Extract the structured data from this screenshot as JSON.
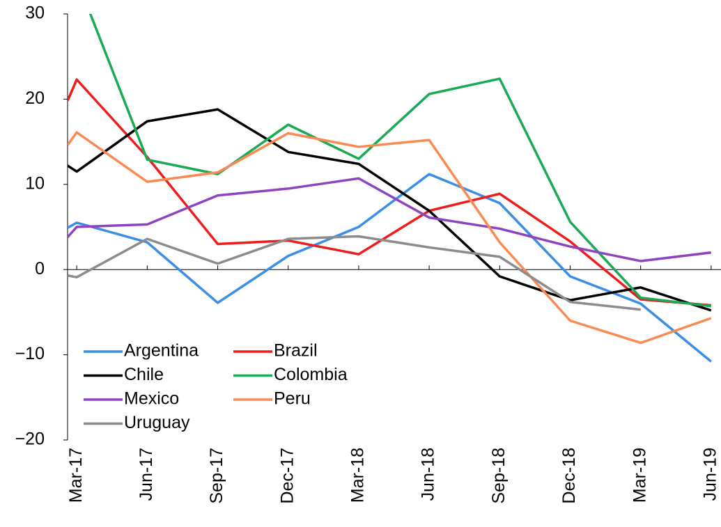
{
  "chart_data": {
    "type": "line",
    "x": [
      -0.13,
      0,
      1,
      2,
      3,
      4,
      5,
      6,
      7,
      8,
      9
    ],
    "xlim": [
      -0.13,
      9.14
    ],
    "xticks": [
      {
        "value": 0,
        "label": "Mar-17"
      },
      {
        "value": 1,
        "label": "Jun-17"
      },
      {
        "value": 2,
        "label": "Sep-17"
      },
      {
        "value": 3,
        "label": "Dec-17"
      },
      {
        "value": 4,
        "label": "Mar-18"
      },
      {
        "value": 5,
        "label": "Jun-18"
      },
      {
        "value": 6,
        "label": "Sep-18"
      },
      {
        "value": 7,
        "label": "Dec-18"
      },
      {
        "value": 8,
        "label": "Mar-19"
      },
      {
        "value": 9,
        "label": "Jun-19"
      }
    ],
    "ylim": [
      -20,
      30
    ],
    "yticks": [
      {
        "value": -20,
        "label": "−20"
      },
      {
        "value": -10,
        "label": "−10"
      },
      0,
      10,
      20,
      30
    ],
    "legend": "bottom-left",
    "series": [
      {
        "name": "Argentina",
        "color": "#3a8ee6",
        "values": [
          4.9,
          5.5,
          3.2,
          -3.9,
          1.6,
          5.0,
          11.2,
          7.8,
          -0.8,
          -4.0,
          -10.8
        ]
      },
      {
        "name": "Brazil",
        "color": "#ee1c1c",
        "values": [
          19.8,
          22.3,
          13.2,
          3.0,
          3.4,
          1.8,
          6.9,
          8.9,
          3.3,
          -3.5,
          -4.2
        ]
      },
      {
        "name": "Chile",
        "color": "#000000",
        "values": [
          12.2,
          11.5,
          17.4,
          18.8,
          13.8,
          12.4,
          6.9,
          -0.8,
          -3.6,
          -2.1,
          -4.8
        ]
      },
      {
        "name": "Colombia",
        "color": "#1aaa55",
        "values": [
          null,
          34.1,
          12.9,
          11.2,
          17.0,
          13.0,
          20.6,
          22.4,
          5.6,
          -3.3,
          -4.3
        ]
      },
      {
        "name": "Mexico",
        "color": "#8e44c0",
        "values": [
          3.8,
          5.0,
          5.3,
          8.7,
          9.5,
          10.7,
          6.1,
          4.8,
          2.7,
          1.0,
          2.0
        ]
      },
      {
        "name": "Peru",
        "color": "#f98a53",
        "values": [
          14.6,
          16.1,
          10.3,
          11.4,
          16.0,
          14.4,
          15.2,
          3.2,
          -6.0,
          -8.6,
          -5.7
        ]
      },
      {
        "name": "Uruguay",
        "color": "#8c8c8c",
        "values": [
          -0.7,
          -0.9,
          3.6,
          0.7,
          3.6,
          3.9,
          2.6,
          1.5,
          -3.8,
          -4.7,
          null
        ]
      }
    ]
  }
}
